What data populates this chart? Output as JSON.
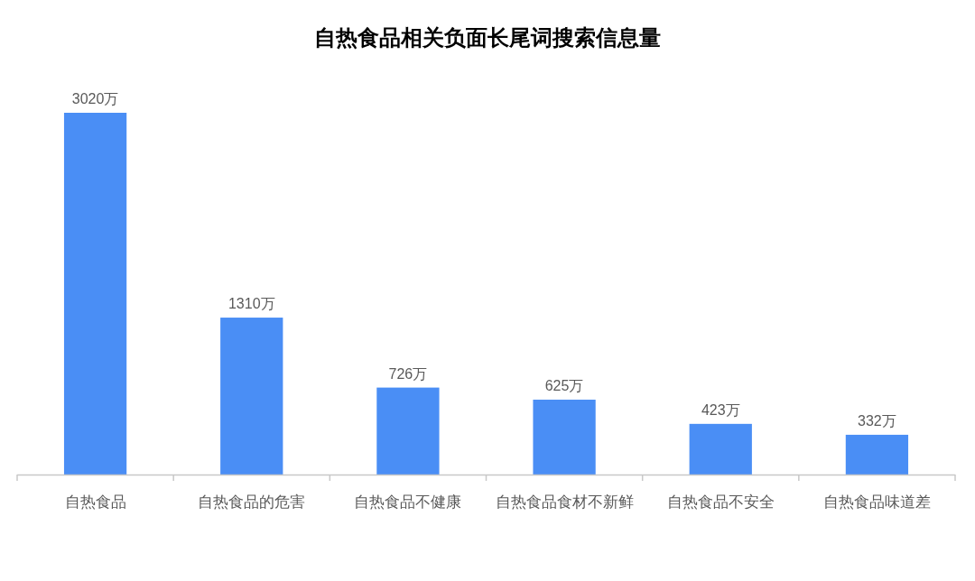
{
  "chart_data": {
    "type": "bar",
    "title": "自热食品相关负面长尾词搜索信息量",
    "categories": [
      "自热食品",
      "自热食品的危害",
      "自热食品不健康",
      "自热食品食材不新鲜",
      "自热食品不安全",
      "自热食品味道差"
    ],
    "values": [
      3020,
      1310,
      726,
      625,
      423,
      332
    ],
    "value_labels": [
      "3020万",
      "1310万",
      "726万",
      "625万",
      "423万",
      "332万"
    ],
    "color": "#4a8ef5"
  }
}
